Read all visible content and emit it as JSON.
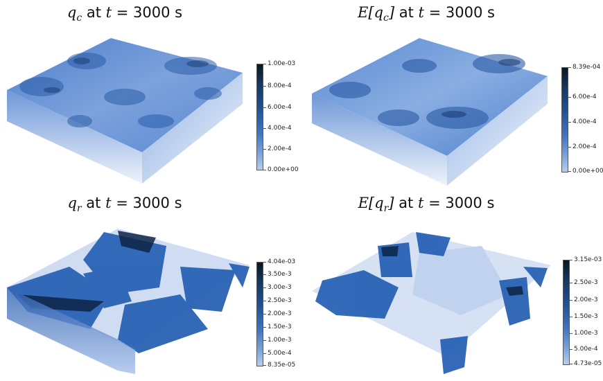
{
  "panels": [
    {
      "title_var": "q",
      "title_sub": "c",
      "title_rest": " at ",
      "title_t": "t",
      "title_eq": " = 3000 s",
      "colorbar_ticks": [
        "1.00e-03",
        "8.00e-4",
        "6.00e-4",
        "4.00e-4",
        "2.00e-4",
        "0.00e+00"
      ]
    },
    {
      "title_prefix": "E[",
      "title_var": "q",
      "title_sub": "c",
      "title_suffix": "]",
      "title_rest": " at ",
      "title_t": "t",
      "title_eq": " = 3000 s",
      "colorbar_ticks": [
        "8.39e-04",
        "6.00e-4",
        "4.00e-4",
        "2.00e-4",
        "0.00e+00"
      ]
    },
    {
      "title_var": "q",
      "title_sub": "r",
      "title_rest": " at ",
      "title_t": "t",
      "title_eq": " = 3000 s",
      "colorbar_ticks": [
        "4.04e-03",
        "3.50e-3",
        "3.00e-3",
        "2.50e-3",
        "2.00e-3",
        "1.50e-3",
        "1.00e-3",
        "5.00e-4",
        "8.35e-05"
      ]
    },
    {
      "title_prefix": "E[",
      "title_var": "q",
      "title_sub": "r",
      "title_suffix": "]",
      "title_rest": " at ",
      "title_t": "t",
      "title_eq": " = 3000 s",
      "colorbar_ticks": [
        "3.15e-03",
        "2.50e-3",
        "2.00e-3",
        "1.50e-3",
        "1.00e-3",
        "5.00e-4",
        "4.73e-05"
      ]
    }
  ],
  "colors": {
    "colormap_dark": "#0b1622",
    "colormap_mid": "#1f4f91",
    "colormap_light": "#b7cdee"
  }
}
